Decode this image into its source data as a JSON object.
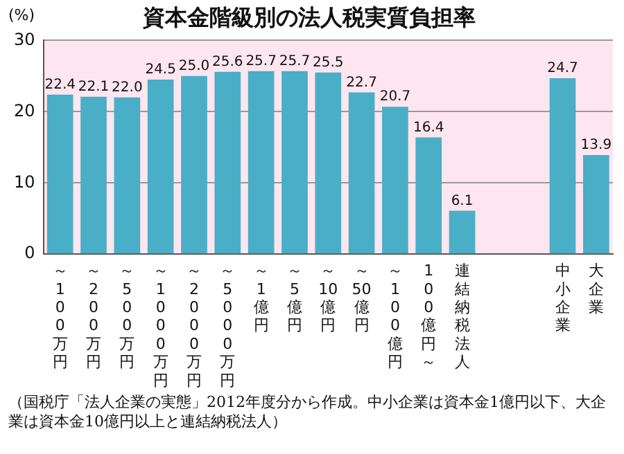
{
  "chart_data": {
    "type": "bar",
    "title": "資本金階級別の法人税実質負担率",
    "ylabel": "(%)",
    "categories": [
      "～100万円",
      "～200万円",
      "～500万円",
      "～1000万円",
      "～2000万円",
      "～5000万円",
      "～1億円",
      "～5億円",
      "～10億円",
      "～50億円",
      "～100億円",
      "100億円～",
      "連結納税法人",
      null,
      null,
      "中小企業",
      "大企業"
    ],
    "values": [
      22.4,
      22.1,
      22.0,
      24.5,
      25.0,
      25.6,
      25.7,
      25.7,
      25.5,
      22.7,
      20.7,
      16.4,
      6.1,
      null,
      null,
      24.7,
      13.9
    ],
    "color": "#4aaec6",
    "ylim": [
      0,
      30
    ],
    "yticks": [
      0,
      10,
      20,
      30
    ],
    "grid": "y",
    "value_labels": [
      "22.4",
      "22.1",
      "22.0",
      "24.5",
      "25.0",
      "25.6",
      "25.7",
      "25.7",
      "25.5",
      "22.7",
      "20.7",
      "16.4",
      "6.1",
      null,
      null,
      "24.7",
      "13.9"
    ],
    "annotations": [
      "（国税庁「法人企業の実態」2012年度分から作成。中小企業は資本金1億円以下、大企業は資本金10億円以上と連結納税法人）"
    ]
  }
}
